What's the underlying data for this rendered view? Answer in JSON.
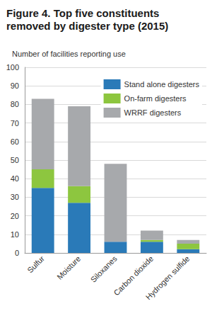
{
  "chart_data": {
    "type": "bar",
    "title": "Figure 4. Top five constituents\nremoved by digester type (2015)",
    "y_label": "Number of facilities reporting use",
    "categories": [
      "Sulfur",
      "Moisture",
      "Siloxanes",
      "Carbon dioxide",
      "Hydrogen sulfide"
    ],
    "series": [
      {
        "name": "Stand alone digesters",
        "color": "#2a7ab8",
        "values": [
          35,
          27,
          6,
          6,
          2
        ]
      },
      {
        "name": "On-farm digesters",
        "color": "#8dc63f",
        "values": [
          10,
          9,
          0,
          1,
          3
        ]
      },
      {
        "name": "WRRF digesters",
        "color": "#a7a9ac",
        "values": [
          38,
          43,
          42,
          5,
          2
        ]
      }
    ],
    "ylim": [
      0,
      100
    ],
    "yticks": [
      0,
      10,
      20,
      30,
      40,
      50,
      60,
      70,
      80,
      90,
      100
    ],
    "stacked": true,
    "grid": true,
    "legend": "upper right"
  }
}
